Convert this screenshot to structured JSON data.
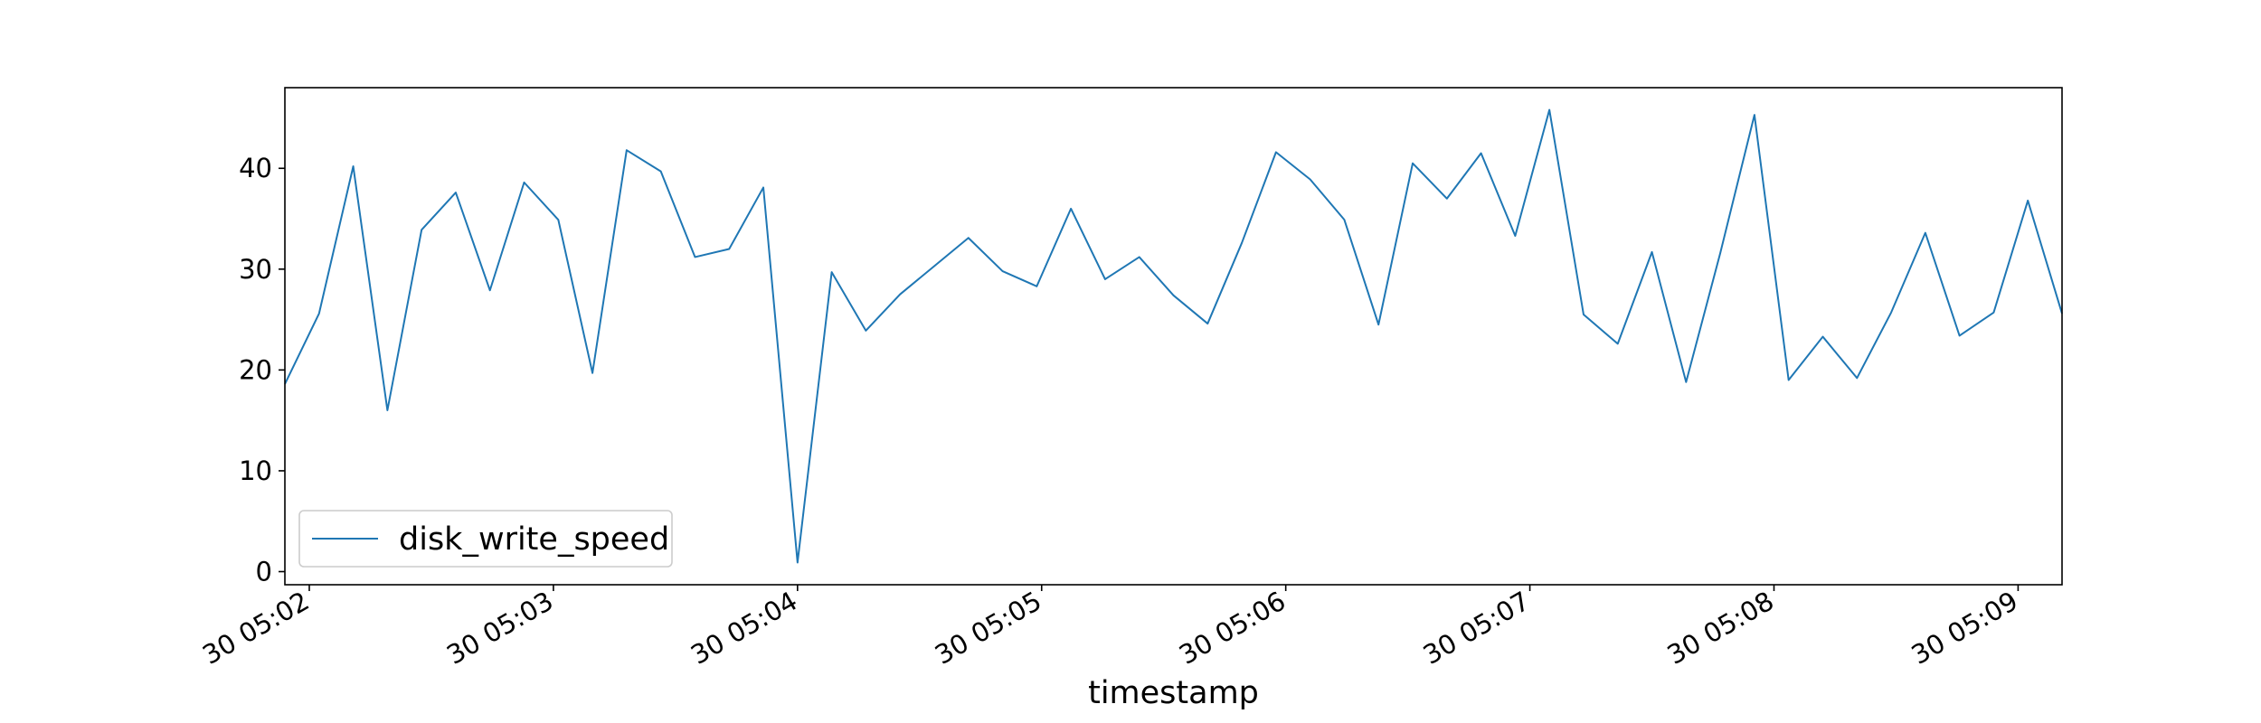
{
  "chart_data": {
    "type": "line",
    "title": "",
    "xlabel": "timestamp",
    "ylabel": "",
    "x_start": "30 05:01:54",
    "x_step_seconds": 8.4,
    "x_tick_labels": [
      "30 05:02",
      "30 05:03",
      "30 05:04",
      "30 05:05",
      "30 05:06",
      "30 05:07",
      "30 05:08",
      "30 05:09"
    ],
    "y_ticks": [
      0,
      10,
      20,
      30,
      40
    ],
    "ylim": [
      -1.3,
      48
    ],
    "grid": false,
    "legend_position": "lower-left",
    "series": [
      {
        "name": "disk_write_speed",
        "color": "#1f77b4",
        "values": [
          18.6,
          25.6,
          40.2,
          16.0,
          33.9,
          37.6,
          27.9,
          38.6,
          34.9,
          19.7,
          41.8,
          39.7,
          31.2,
          32.0,
          38.1,
          0.9,
          29.7,
          23.9,
          27.5,
          30.3,
          33.1,
          29.8,
          28.3,
          36.0,
          29.0,
          31.2,
          27.4,
          24.6,
          32.6,
          41.6,
          38.9,
          34.9,
          24.5,
          40.5,
          37.0,
          41.5,
          33.3,
          45.8,
          25.5,
          22.6,
          31.7,
          18.8,
          31.6,
          45.3,
          19.0,
          23.3,
          19.2,
          25.7,
          33.6,
          23.4,
          25.7,
          36.8,
          25.6
        ]
      }
    ]
  }
}
